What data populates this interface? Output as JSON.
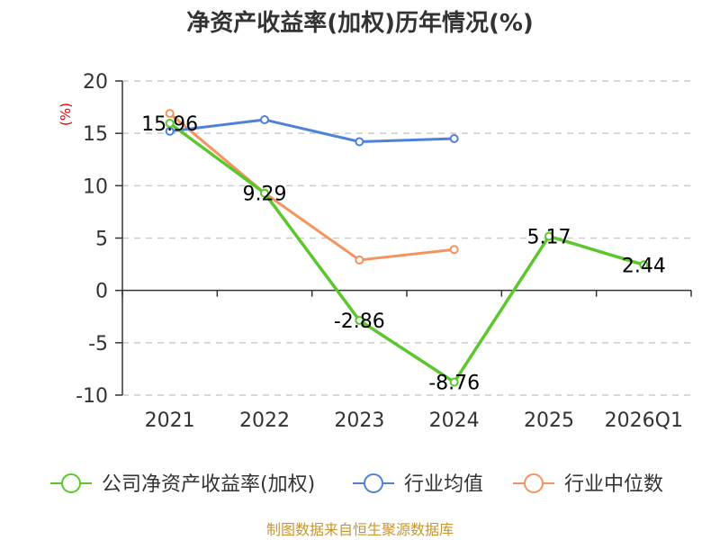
{
  "chart_data": {
    "type": "line",
    "title": "净资产收益率(加权)历年情况(%)",
    "ylabel": "(%)",
    "categories": [
      "2021",
      "2022",
      "2023",
      "2024",
      "2025",
      "2026Q1"
    ],
    "ylim": [
      -10,
      20
    ],
    "yticks": [
      20,
      15,
      10,
      5,
      0,
      -5,
      -10
    ],
    "grid": true,
    "legend_position": "bottom",
    "series": [
      {
        "name": "公司净资产收益率(加权)",
        "color": "#5cc72d",
        "values": [
          15.96,
          9.29,
          -2.86,
          -8.76,
          5.17,
          2.44
        ],
        "labels": [
          "15.96",
          "9.29",
          "-2.86",
          "-8.76",
          "5.17",
          "2.44"
        ]
      },
      {
        "name": "行业均值",
        "color": "#4f81d9",
        "values": [
          15.2,
          16.3,
          14.2,
          14.5,
          null,
          null
        ]
      },
      {
        "name": "行业中位数",
        "color": "#f4935d",
        "values": [
          16.9,
          9.3,
          2.9,
          3.9,
          null,
          null
        ]
      }
    ],
    "source": "制图数据来自恒生聚源数据库"
  }
}
